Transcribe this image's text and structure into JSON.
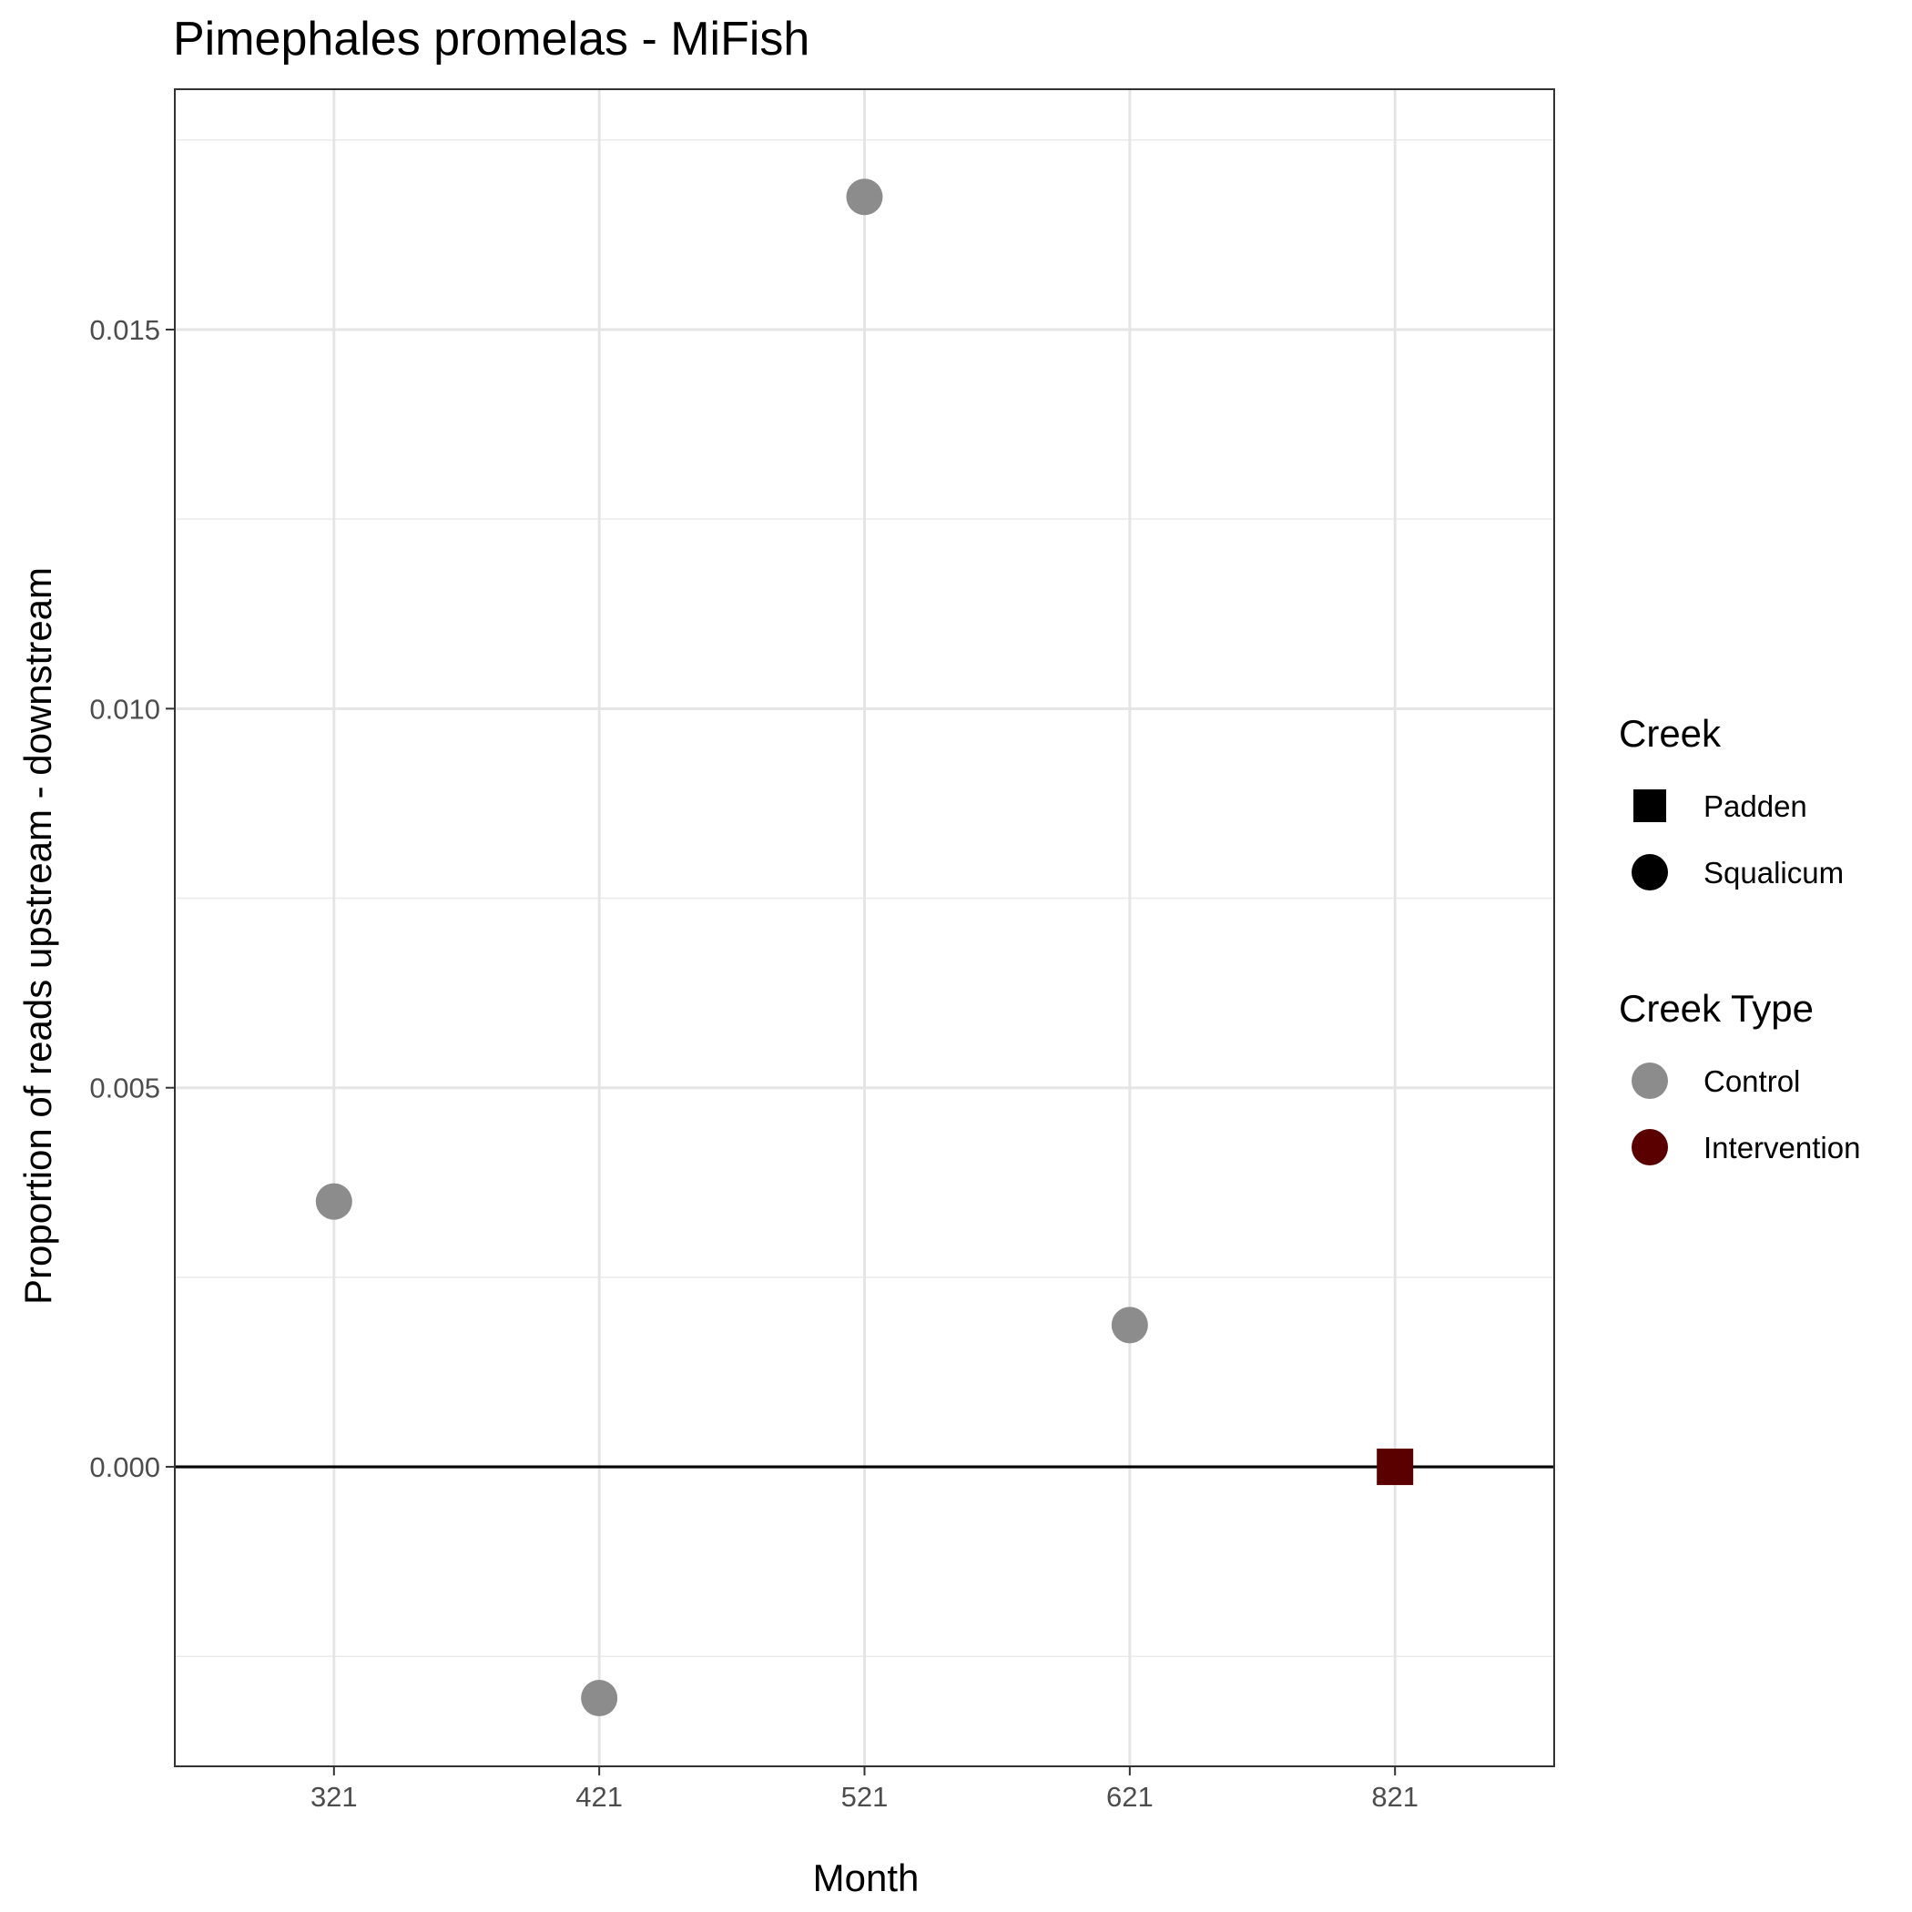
{
  "chart_data": {
    "type": "scatter",
    "title": "Pimephales promelas - MiFish",
    "xlabel": "Month",
    "ylabel": "Proportion of reads upstream - downstream",
    "categories": [
      "321",
      "421",
      "521",
      "621",
      "821"
    ],
    "y_ticks": [
      "0.000",
      "0.005",
      "0.010",
      "0.015"
    ],
    "y_tick_values": [
      0.0,
      0.005,
      0.01,
      0.015
    ],
    "ylim": [
      -0.00395,
      0.01817
    ],
    "reference_line_y": 0.0,
    "grid": true,
    "points": [
      {
        "x": "321",
        "y": 0.0035,
        "creek": "Squalicum",
        "creek_type": "Control"
      },
      {
        "x": "421",
        "y": -0.00305,
        "creek": "Squalicum",
        "creek_type": "Control"
      },
      {
        "x": "521",
        "y": 0.01675,
        "creek": "Squalicum",
        "creek_type": "Control"
      },
      {
        "x": "621",
        "y": 0.00187,
        "creek": "Squalicum",
        "creek_type": "Control"
      },
      {
        "x": "821",
        "y": 0.0,
        "creek": "Padden",
        "creek_type": "Intervention"
      }
    ],
    "legend": {
      "position": "right",
      "shape_title": "Creek",
      "shape_items": [
        {
          "label": "Padden",
          "shape": "square"
        },
        {
          "label": "Squalicum",
          "shape": "circle"
        }
      ],
      "color_title": "Creek Type",
      "color_items": [
        {
          "label": "Control",
          "color": "#8c8c8c"
        },
        {
          "label": "Intervention",
          "color": "#5a0000"
        }
      ]
    }
  }
}
